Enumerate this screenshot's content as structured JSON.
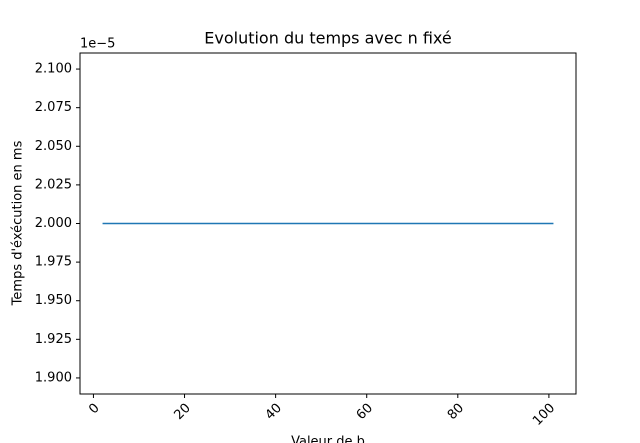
{
  "chart_data": {
    "type": "line",
    "title": "Evolution du temps avec n fixé",
    "x_label": "Valeur de b",
    "y_label": "Temps d'éxécution en ms",
    "y_offset_label": "1e−5",
    "x": [
      2,
      101
    ],
    "series": [
      {
        "name": null,
        "color": "#1f77b4",
        "values": [
          2.0,
          2.0
        ]
      }
    ],
    "xlim": [
      -2.95,
      105.95
    ],
    "xticks": [
      0,
      20,
      40,
      60,
      80,
      100
    ],
    "ylim": [
      1.8896,
      2.1104
    ],
    "yticks": [
      {
        "value": 1.9,
        "label": "1.900"
      },
      {
        "value": 1.925,
        "label": "1.925"
      },
      {
        "value": 1.95,
        "label": "1.950"
      },
      {
        "value": 1.975,
        "label": "1.975"
      },
      {
        "value": 2.0,
        "label": "2.000"
      },
      {
        "value": 2.025,
        "label": "2.025"
      },
      {
        "value": 2.05,
        "label": "2.050"
      },
      {
        "value": 2.075,
        "label": "2.075"
      },
      {
        "value": 2.1,
        "label": "2.100"
      }
    ],
    "grid": false
  }
}
